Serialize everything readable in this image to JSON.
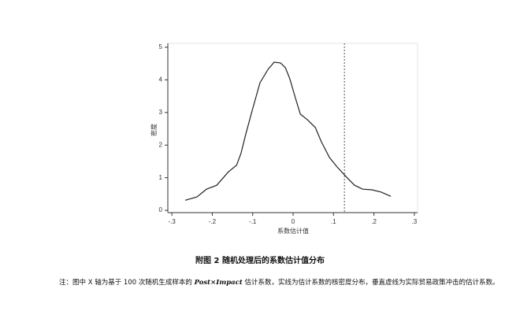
{
  "chart_data": {
    "type": "line",
    "y_label": "密度",
    "x_label": "系数估计值",
    "x": [
      -0.267,
      -0.238,
      -0.214,
      -0.189,
      -0.16,
      -0.14,
      -0.129,
      -0.117,
      -0.101,
      -0.082,
      -0.062,
      -0.047,
      -0.031,
      -0.019,
      -0.008,
      0.006,
      0.018,
      0.035,
      0.055,
      0.07,
      0.09,
      0.109,
      0.133,
      0.152,
      0.172,
      0.195,
      0.218,
      0.242
    ],
    "series": [
      {
        "color": "#222222",
        "values": [
          0.31,
          0.41,
          0.65,
          0.77,
          1.18,
          1.38,
          1.74,
          2.34,
          3.07,
          3.91,
          4.32,
          4.54,
          4.52,
          4.37,
          4.03,
          3.43,
          2.95,
          2.78,
          2.54,
          2.1,
          1.62,
          1.33,
          1.01,
          0.77,
          0.65,
          0.63,
          0.56,
          0.43
        ]
      }
    ],
    "vline": 0.127,
    "xlim": [
      -0.31,
      0.308
    ],
    "ylim": [
      -0.07,
      5.12
    ],
    "xticks": [
      {
        "value": -0.3,
        "label": "-.3"
      },
      {
        "value": -0.2,
        "label": "-.2"
      },
      {
        "value": -0.1,
        "label": "-.1"
      },
      0,
      {
        "value": 0.1,
        "label": ".1"
      },
      {
        "value": 0.2,
        "label": ".2"
      },
      {
        "value": 0.3,
        "label": ".3"
      }
    ],
    "yticks": [
      0,
      1,
      2,
      3,
      4,
      5
    ],
    "caption": "附图 2  随机处理后的系数估计值分布",
    "note": [
      {
        "text": "注：图中 X 轴为基于 100 次随机生成样本的 "
      },
      {
        "text": "Post×Impact",
        "italic": true
      },
      {
        "text": " 估计系数，实线为估计系数的核密度分布，垂直虚线为实际贸易政策冲击的估计系数。"
      }
    ]
  }
}
